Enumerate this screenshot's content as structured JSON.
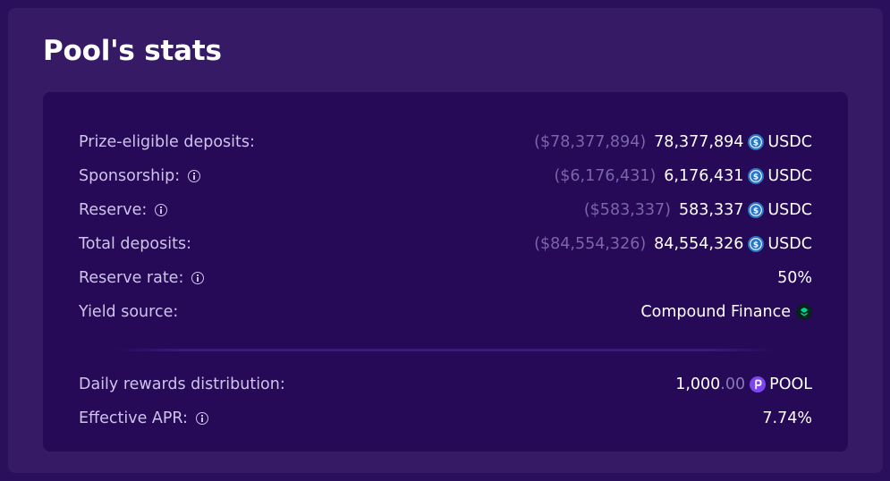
{
  "title": "Pool's stats",
  "colors": {
    "page_bg": "#2a0f5c",
    "card_bg": "#361a66",
    "inner_bg": "#260a57",
    "label": "#cfc3ec",
    "muted_usd": "#7b66a8",
    "usdc_icon": "#2775ca",
    "compound_icon": "#00d395",
    "pool_icon": "#7e46f2"
  },
  "stats": [
    {
      "label": "Prize-eligible deposits:",
      "info": false,
      "usd": "($78,377,894)",
      "amount": "78,377,894",
      "icon": "usdc-icon",
      "unit": "USDC"
    },
    {
      "label": "Sponsorship:",
      "info": true,
      "usd": "($6,176,431)",
      "amount": "6,176,431",
      "icon": "usdc-icon",
      "unit": "USDC"
    },
    {
      "label": "Reserve:",
      "info": true,
      "usd": "($583,337)",
      "amount": "583,337",
      "icon": "usdc-icon",
      "unit": "USDC"
    },
    {
      "label": "Total deposits:",
      "info": false,
      "usd": "($84,554,326)",
      "amount": "84,554,326",
      "icon": "usdc-icon",
      "unit": "USDC"
    },
    {
      "label": "Reserve rate:",
      "info": true,
      "value": "50%"
    },
    {
      "label": "Yield source:",
      "info": false,
      "value": "Compound Finance",
      "icon": "compound-icon"
    }
  ],
  "rewards": [
    {
      "label": "Daily rewards distribution:",
      "info": false,
      "amount": "1,000",
      "decimals": ".00",
      "icon": "pool-icon",
      "unit": "POOL"
    },
    {
      "label": "Effective APR:",
      "info": true,
      "value": "7.74%"
    }
  ]
}
